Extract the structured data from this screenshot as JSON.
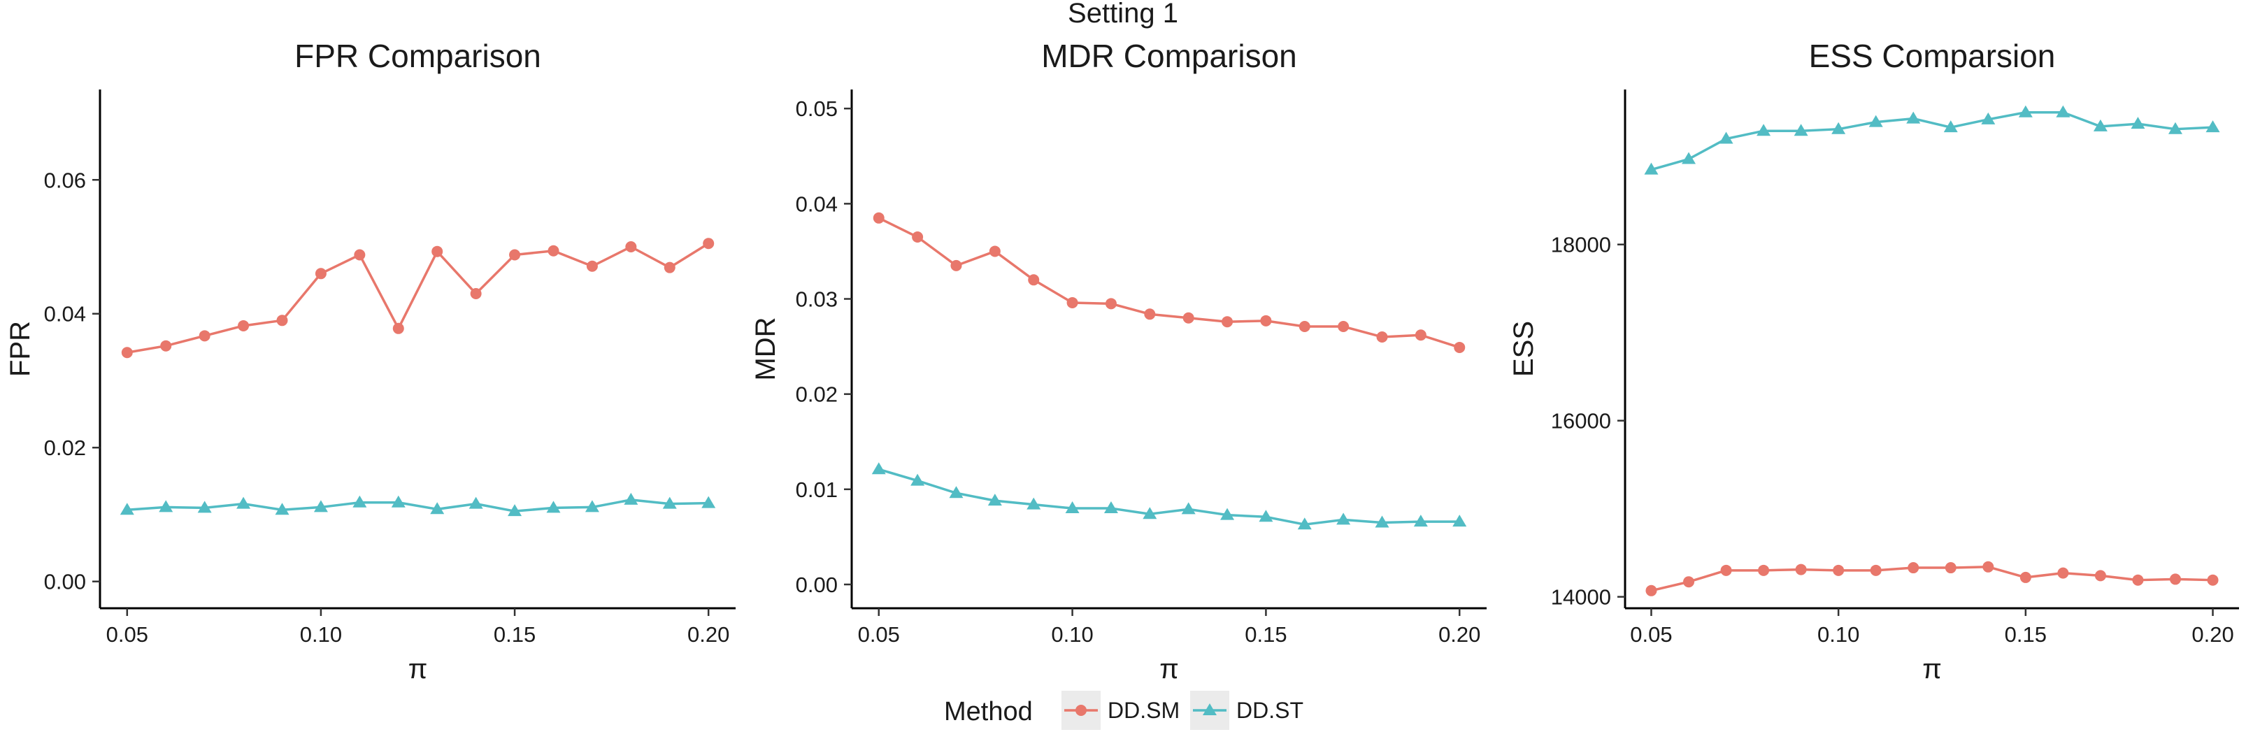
{
  "figure": {
    "suptitle": "Setting 1",
    "legend_title": "Method"
  },
  "colors": {
    "DD.SM": "#E8776B",
    "DD.ST": "#52BCC4"
  },
  "chart_data": [
    {
      "type": "line",
      "title": "FPR Comparison",
      "xlabel": "π",
      "ylabel": "FPR",
      "xlim": [
        0.043,
        0.207
      ],
      "ylim": [
        -0.004,
        0.0735
      ],
      "xticks": [
        0.05,
        0.1,
        0.15,
        0.2
      ],
      "xtick_labels": [
        "0.05",
        "0.10",
        "0.15",
        "0.20"
      ],
      "yticks": [
        0.0,
        0.02,
        0.04,
        0.06
      ],
      "ytick_labels": [
        "0.00",
        "0.02",
        "0.04",
        "0.06"
      ],
      "x": [
        0.05,
        0.06,
        0.07,
        0.08,
        0.09,
        0.1,
        0.11,
        0.12,
        0.13,
        0.14,
        0.15,
        0.16,
        0.17,
        0.18,
        0.19,
        0.2
      ],
      "series": [
        {
          "name": "DD.SM",
          "marker": "circle",
          "values": [
            0.0342,
            0.0352,
            0.0367,
            0.0382,
            0.039,
            0.046,
            0.0488,
            0.0378,
            0.0493,
            0.043,
            0.0488,
            0.0494,
            0.0471,
            0.05,
            0.0469,
            0.0505
          ]
        },
        {
          "name": "DD.ST",
          "marker": "triangle",
          "values": [
            0.0107,
            0.0111,
            0.011,
            0.0116,
            0.0107,
            0.0111,
            0.0118,
            0.0118,
            0.0108,
            0.0116,
            0.0105,
            0.011,
            0.0111,
            0.0122,
            0.0116,
            0.0117
          ]
        }
      ]
    },
    {
      "type": "line",
      "title": "MDR Comparison",
      "xlabel": "π",
      "ylabel": "MDR",
      "xlim": [
        0.043,
        0.207
      ],
      "ylim": [
        -0.0025,
        0.052
      ],
      "xticks": [
        0.05,
        0.1,
        0.15,
        0.2
      ],
      "xtick_labels": [
        "0.05",
        "0.10",
        "0.15",
        "0.20"
      ],
      "yticks": [
        0.0,
        0.01,
        0.02,
        0.03,
        0.04,
        0.05
      ],
      "ytick_labels": [
        "0.00",
        "0.01",
        "0.02",
        "0.03",
        "0.04",
        "0.05"
      ],
      "x": [
        0.05,
        0.06,
        0.07,
        0.08,
        0.09,
        0.1,
        0.11,
        0.12,
        0.13,
        0.14,
        0.15,
        0.16,
        0.17,
        0.18,
        0.19,
        0.2
      ],
      "series": [
        {
          "name": "DD.SM",
          "marker": "circle",
          "values": [
            0.0385,
            0.0365,
            0.0335,
            0.035,
            0.032,
            0.0296,
            0.0295,
            0.0284,
            0.028,
            0.0276,
            0.0277,
            0.0271,
            0.0271,
            0.026,
            0.0262,
            0.0249
          ]
        },
        {
          "name": "DD.ST",
          "marker": "triangle",
          "values": [
            0.0121,
            0.0109,
            0.0096,
            0.0088,
            0.0084,
            0.008,
            0.008,
            0.0074,
            0.0079,
            0.0073,
            0.0071,
            0.0063,
            0.0068,
            0.0065,
            0.0066,
            0.0066
          ]
        }
      ]
    },
    {
      "type": "line",
      "title": "ESS Comparsion",
      "xlabel": "π",
      "ylabel": "ESS",
      "xlim": [
        0.043,
        0.207
      ],
      "ylim": [
        13870,
        19760
      ],
      "xticks": [
        0.05,
        0.1,
        0.15,
        0.2
      ],
      "xtick_labels": [
        "0.05",
        "0.10",
        "0.15",
        "0.20"
      ],
      "yticks": [
        14000,
        16000,
        18000
      ],
      "ytick_labels": [
        "14000",
        "16000",
        "18000"
      ],
      "x": [
        0.05,
        0.06,
        0.07,
        0.08,
        0.09,
        0.1,
        0.11,
        0.12,
        0.13,
        0.14,
        0.15,
        0.16,
        0.17,
        0.18,
        0.19,
        0.2
      ],
      "series": [
        {
          "name": "DD.SM",
          "marker": "circle",
          "values": [
            14070,
            14170,
            14300,
            14300,
            14310,
            14300,
            14300,
            14330,
            14330,
            14340,
            14220,
            14270,
            14240,
            14190,
            14200,
            14190
          ]
        },
        {
          "name": "DD.ST",
          "marker": "triangle",
          "values": [
            18850,
            18970,
            19200,
            19290,
            19290,
            19310,
            19390,
            19430,
            19330,
            19420,
            19500,
            19500,
            19340,
            19370,
            19310,
            19330
          ]
        }
      ]
    }
  ]
}
